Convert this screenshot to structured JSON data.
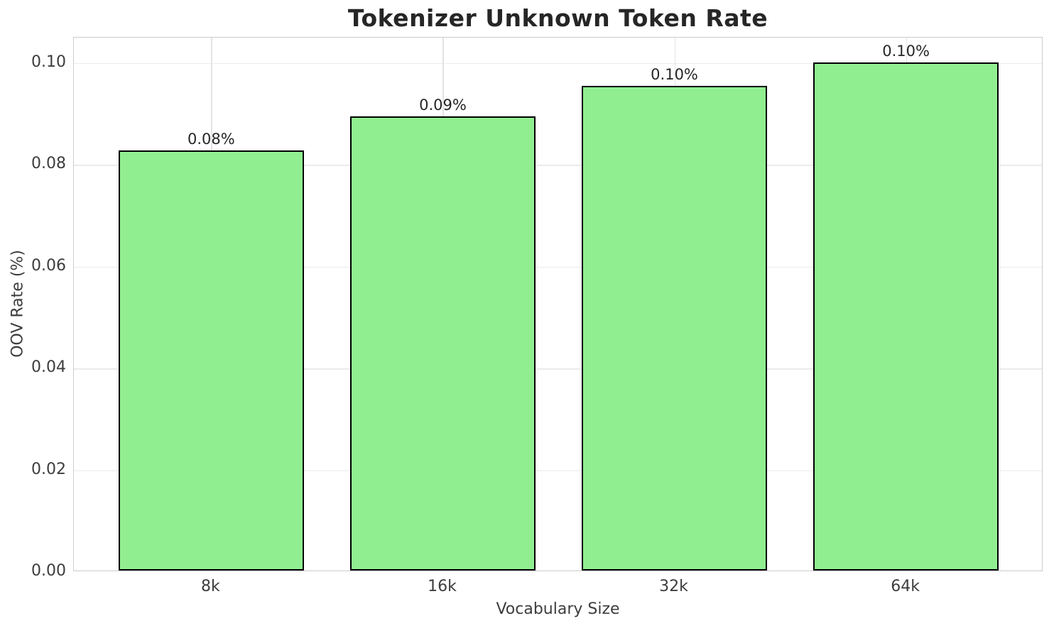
{
  "chart_data": {
    "type": "bar",
    "title": "Tokenizer Unknown Token Rate",
    "xlabel": "Vocabulary Size",
    "ylabel": "OOV Rate (%)",
    "categories": [
      "8k",
      "16k",
      "32k",
      "64k"
    ],
    "values": [
      0.0825,
      0.0893,
      0.0952,
      0.0999
    ],
    "bar_labels": [
      "0.08%",
      "0.09%",
      "0.10%",
      "0.10%"
    ],
    "yticks": [
      0.0,
      0.02,
      0.04,
      0.06,
      0.08,
      0.1
    ],
    "ytick_labels": [
      "0.00",
      "0.02",
      "0.04",
      "0.06",
      "0.08",
      "0.10"
    ],
    "ylim": [
      0,
      0.105
    ],
    "grid": true,
    "legend_position": "none",
    "colors": {
      "bar_fill": "#90EE90",
      "bar_edge": "#000000",
      "grid_h": "#ebebeb",
      "grid_v": "#e3e3e3",
      "spine": "#cccccc",
      "title_text": "#262626",
      "tick_text": "#3d3d3d"
    }
  }
}
